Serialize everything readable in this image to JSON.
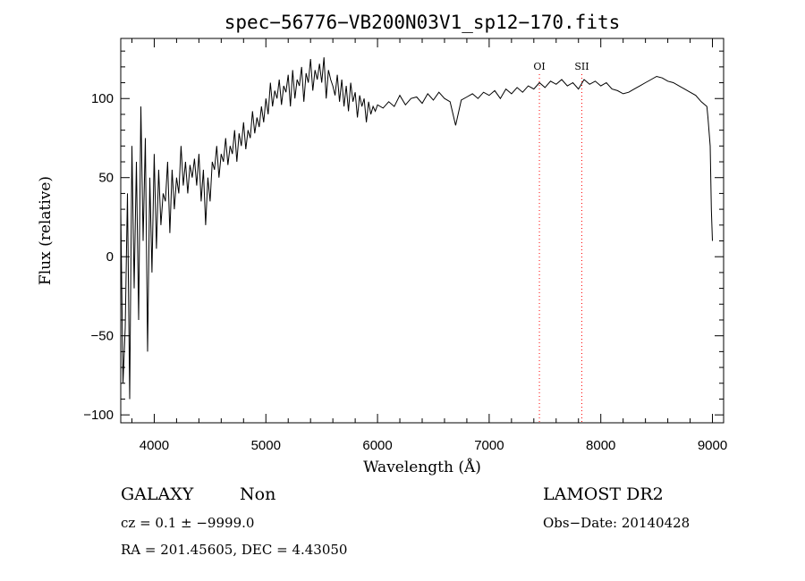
{
  "chart_data": {
    "type": "line",
    "title": "spec−56776−VB200N03V1_sp12−170.fits",
    "xlabel": "Wavelength (Å)",
    "ylabel": "Flux (relative)",
    "xlim": [
      3700,
      9100
    ],
    "ylim": [
      -105,
      138
    ],
    "x_ticks": [
      4000,
      5000,
      6000,
      7000,
      8000,
      9000
    ],
    "x_tick_labels": [
      "4000",
      "5000",
      "6000",
      "7000",
      "8000",
      "9000"
    ],
    "y_ticks": [
      -100,
      -50,
      0,
      50,
      100
    ],
    "y_tick_labels": [
      "−100",
      "−50",
      "0",
      "50",
      "100"
    ],
    "grid": false,
    "series": [
      {
        "color": "#000000",
        "x": [
          3700,
          3720,
          3740,
          3760,
          3780,
          3800,
          3820,
          3840,
          3860,
          3880,
          3900,
          3920,
          3940,
          3960,
          3980,
          4000,
          4020,
          4040,
          4060,
          4080,
          4100,
          4120,
          4140,
          4160,
          4180,
          4200,
          4220,
          4240,
          4260,
          4280,
          4300,
          4320,
          4340,
          4360,
          4380,
          4400,
          4420,
          4440,
          4460,
          4480,
          4500,
          4520,
          4540,
          4560,
          4580,
          4600,
          4620,
          4640,
          4660,
          4680,
          4700,
          4720,
          4740,
          4760,
          4780,
          4800,
          4820,
          4840,
          4860,
          4880,
          4900,
          4920,
          4940,
          4960,
          4980,
          5000,
          5020,
          5040,
          5060,
          5080,
          5100,
          5120,
          5140,
          5160,
          5180,
          5200,
          5220,
          5240,
          5260,
          5280,
          5300,
          5320,
          5340,
          5360,
          5380,
          5400,
          5420,
          5440,
          5460,
          5480,
          5500,
          5520,
          5540,
          5560,
          5580,
          5600,
          5620,
          5640,
          5660,
          5680,
          5700,
          5720,
          5740,
          5760,
          5780,
          5800,
          5820,
          5840,
          5860,
          5880,
          5900,
          5920,
          5940,
          5960,
          5980,
          6000,
          6050,
          6100,
          6150,
          6200,
          6250,
          6300,
          6350,
          6400,
          6450,
          6500,
          6550,
          6600,
          6650,
          6700,
          6750,
          6800,
          6850,
          6900,
          6950,
          7000,
          7050,
          7100,
          7150,
          7200,
          7250,
          7300,
          7350,
          7400,
          7450,
          7500,
          7550,
          7600,
          7650,
          7700,
          7750,
          7800,
          7850,
          7900,
          7950,
          8000,
          8050,
          8100,
          8150,
          8200,
          8250,
          8300,
          8350,
          8400,
          8450,
          8500,
          8550,
          8600,
          8650,
          8700,
          8750,
          8800,
          8850,
          8900,
          8950,
          8960,
          8980,
          8990,
          9000
        ],
        "values": [
          30,
          -80,
          -45,
          40,
          -90,
          70,
          -20,
          60,
          -40,
          95,
          10,
          75,
          -60,
          50,
          -10,
          65,
          5,
          55,
          20,
          40,
          35,
          60,
          15,
          55,
          30,
          50,
          40,
          70,
          45,
          60,
          40,
          58,
          50,
          62,
          45,
          65,
          35,
          55,
          20,
          50,
          35,
          60,
          55,
          70,
          50,
          65,
          60,
          75,
          58,
          70,
          65,
          80,
          60,
          78,
          70,
          85,
          68,
          80,
          75,
          92,
          78,
          88,
          82,
          95,
          85,
          100,
          90,
          110,
          95,
          105,
          100,
          112,
          96,
          108,
          104,
          115,
          95,
          118,
          100,
          112,
          108,
          120,
          98,
          116,
          110,
          125,
          105,
          118,
          112,
          122,
          110,
          126,
          100,
          118,
          112,
          108,
          102,
          115,
          98,
          112,
          95,
          108,
          92,
          110,
          98,
          104,
          88,
          102,
          95,
          100,
          85,
          98,
          90,
          95,
          92,
          96,
          94,
          98,
          95,
          102,
          96,
          100,
          101,
          97,
          103,
          99,
          104,
          100,
          98,
          83,
          99,
          101,
          103,
          100,
          104,
          102,
          105,
          100,
          106,
          103,
          107,
          104,
          108,
          106,
          110,
          107,
          111,
          109,
          112,
          108,
          110,
          106,
          112,
          109,
          111,
          108,
          110,
          106,
          105,
          103,
          104,
          106,
          108,
          110,
          112,
          114,
          113,
          111,
          110,
          108,
          106,
          104,
          102,
          98,
          95,
          88,
          70,
          30,
          10
        ]
      }
    ],
    "reference_lines": [
      {
        "x": 7450,
        "label": "OI",
        "color": "#ff0000"
      },
      {
        "x": 7830,
        "label": "SII",
        "color": "#ff0000"
      }
    ]
  },
  "info": {
    "class_label": "GALAXY",
    "subclass_label": "Non",
    "survey_label": "LAMOST DR2",
    "cz_text": "cz = 0.1 ± −9999.0",
    "obs_date_text": "Obs−Date: 20140428",
    "coords_text": "RA = 201.45605, DEC =    4.43050"
  }
}
